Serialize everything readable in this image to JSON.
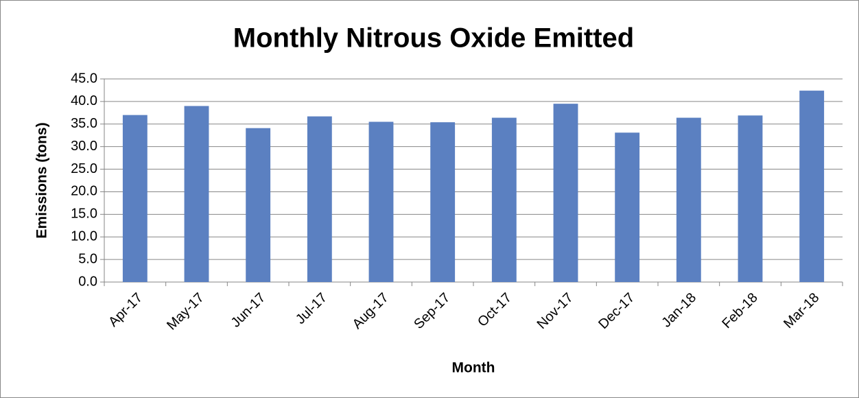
{
  "chart_data": {
    "type": "bar",
    "title": "Monthly Nitrous Oxide Emitted",
    "x_label": "Month",
    "y_label": "Emissions (tons)",
    "categories": [
      "Apr-17",
      "May-17",
      "Jun-17",
      "Jul-17",
      "Aug-17",
      "Sep-17",
      "Oct-17",
      "Nov-17",
      "Dec-17",
      "Jan-18",
      "Feb-18",
      "Mar-18"
    ],
    "values": [
      37.0,
      39.0,
      34.1,
      36.7,
      35.5,
      35.4,
      36.4,
      39.5,
      33.1,
      36.4,
      36.9,
      42.4
    ],
    "color": "#5b80c1",
    "ylim": [
      0,
      45
    ],
    "yticks": [
      {
        "value": 0,
        "label": "0.0"
      },
      {
        "value": 5,
        "label": "5.0"
      },
      {
        "value": 10,
        "label": "10.0"
      },
      {
        "value": 15,
        "label": "15.0"
      },
      {
        "value": 20,
        "label": "20.0"
      },
      {
        "value": 25,
        "label": "25.0"
      },
      {
        "value": 30,
        "label": "30.0"
      },
      {
        "value": 35,
        "label": "35.0"
      },
      {
        "value": 40,
        "label": "40.0"
      },
      {
        "value": 45,
        "label": "45.0"
      }
    ],
    "grid": true
  }
}
